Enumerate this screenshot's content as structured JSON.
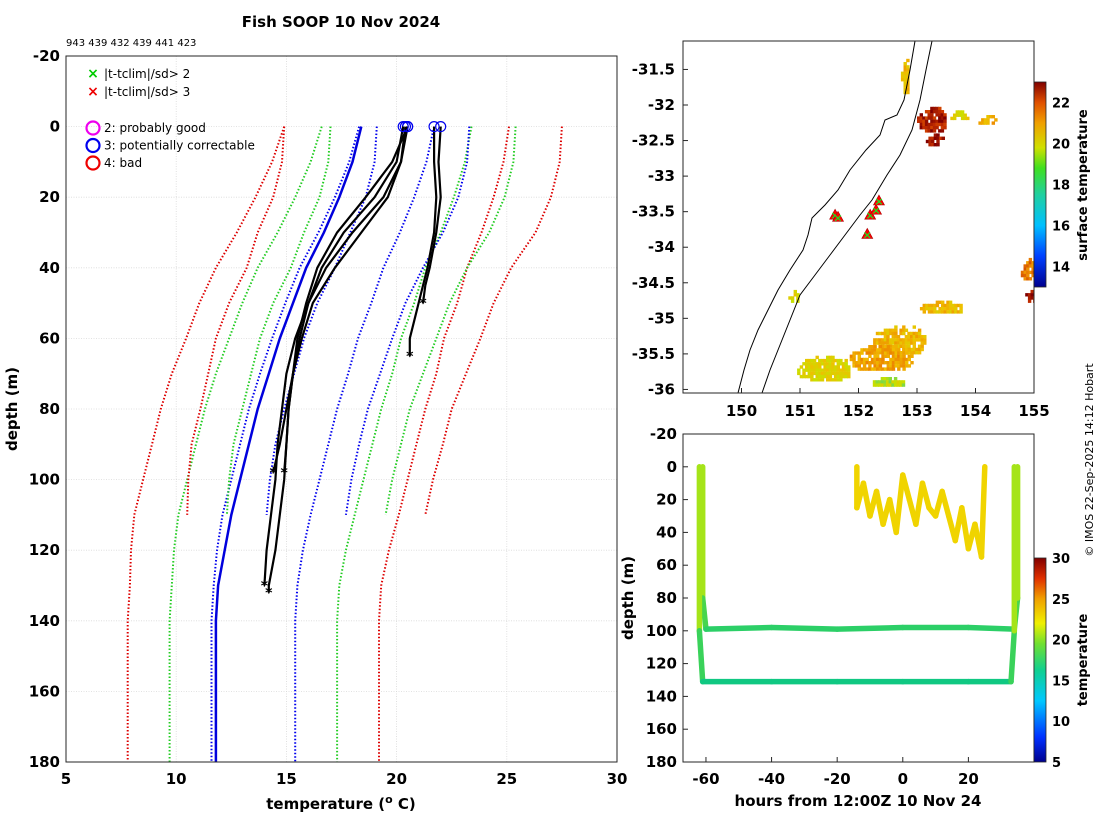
{
  "figure": {
    "title": "Fish SOOP 10 Nov 2024",
    "drop_ids": "943 439 432 439 441 423",
    "credit": "© IMOS 22-Sep-2025 14:12 Hobart"
  },
  "chart_data": [
    {
      "type": "line",
      "name": "profile-plot",
      "xlabel": "temperature (° C)",
      "ylabel": "depth (m)",
      "xlim": [
        5,
        30
      ],
      "ylim": [
        -20,
        180
      ],
      "y_reversed": true,
      "xticks": [
        5,
        10,
        15,
        20,
        25,
        30
      ],
      "yticks": [
        -20,
        0,
        20,
        40,
        60,
        80,
        100,
        120,
        140,
        160,
        180
      ],
      "grid": true,
      "legend": {
        "placement": "top-left",
        "entries": [
          {
            "marker": "x",
            "color": "#00cc00",
            "label": "|t-tclim|/sd> 2"
          },
          {
            "marker": "x",
            "color": "#ee0000",
            "label": "|t-tclim|/sd> 3"
          },
          {
            "marker": "o",
            "color": "#ee00ee",
            "label": "2: probably good"
          },
          {
            "marker": "o",
            "color": "#0000ee",
            "label": "3: potentially correctable"
          },
          {
            "marker": "o",
            "color": "#ee0000",
            "label": "4: bad"
          }
        ]
      },
      "climatology_bounds": {
        "note": "dotted envelopes: blue = ±1 sd, green = ±2 sd, red = ±3 sd; two climatology groups (A: deep drops 0-180 m, B: shallow drops 0-110 m)",
        "depths": [
          0,
          10,
          20,
          30,
          40,
          50,
          60,
          70,
          80,
          90,
          100,
          110,
          120,
          130,
          140,
          150,
          160,
          170,
          180
        ],
        "A_mean": [
          20.0,
          19.6,
          19.0,
          18.3,
          17.5,
          16.9,
          16.3,
          15.8,
          15.3,
          14.9,
          14.5,
          14.1,
          13.8,
          13.6,
          13.5,
          13.5,
          13.5,
          13.5,
          13.5
        ],
        "A_sd": [
          1.7,
          1.75,
          1.8,
          1.85,
          1.9,
          1.95,
          1.95,
          2.0,
          2.0,
          2.0,
          2.0,
          2.0,
          1.95,
          1.9,
          1.9,
          1.9,
          1.9,
          1.9,
          1.9
        ],
        "B_mean": [
          21.2,
          21.1,
          20.7,
          20.0,
          19.2,
          18.4,
          17.8,
          17.3,
          16.8,
          16.4,
          16.1,
          15.9
        ],
        "B_sd": [
          2.1,
          2.1,
          2.1,
          2.1,
          2.0,
          2.0,
          2.0,
          1.95,
          1.9,
          1.9,
          1.85,
          1.8
        ]
      },
      "series": [
        {
          "name": "drop-1",
          "color": "#000000",
          "depth": [
            0,
            10,
            20,
            30,
            40,
            50,
            60,
            70,
            80,
            90,
            100,
            110,
            120,
            130,
            132
          ],
          "temp": [
            20.4,
            20.2,
            19.6,
            18.4,
            17.2,
            16.2,
            15.7,
            15.3,
            15.1,
            15.0,
            14.9,
            14.7,
            14.5,
            14.2,
            14.2
          ],
          "qc_flag": 3
        },
        {
          "name": "drop-2",
          "color": "#000000",
          "depth": [
            0,
            10,
            20,
            30,
            40,
            50,
            60,
            70,
            80,
            90,
            98
          ],
          "temp": [
            20.5,
            20.2,
            19.4,
            18.0,
            16.8,
            16.0,
            15.6,
            15.3,
            15.1,
            15.0,
            14.9
          ],
          "qc_flag": 3
        },
        {
          "name": "drop-3",
          "color": "#000000",
          "depth": [
            0,
            10,
            20,
            30,
            40,
            50,
            60,
            70,
            80,
            90,
            98
          ],
          "temp": [
            20.5,
            19.8,
            18.6,
            17.3,
            16.4,
            15.9,
            15.5,
            15.3,
            15.0,
            14.7,
            14.4
          ],
          "qc_flag": 3
        },
        {
          "name": "drop-4",
          "color": "#000000",
          "depth": [
            0,
            10,
            20,
            30,
            40,
            50,
            60,
            70,
            80,
            90,
            100,
            110,
            120,
            130
          ],
          "temp": [
            20.3,
            20.0,
            19.0,
            17.6,
            16.6,
            16.0,
            15.4,
            15.0,
            14.8,
            14.6,
            14.5,
            14.3,
            14.1,
            14.0
          ],
          "qc_flag": 3
        },
        {
          "name": "drop-5",
          "color": "#000000",
          "depth": [
            0,
            10,
            20,
            30,
            40,
            45,
            50,
            55,
            60,
            65
          ],
          "temp": [
            21.7,
            21.7,
            21.8,
            21.7,
            21.4,
            21.2,
            21.0,
            20.8,
            20.6,
            20.6
          ],
          "qc_flag": 3
        },
        {
          "name": "drop-6",
          "color": "#000000",
          "depth": [
            0,
            10,
            20,
            30,
            40,
            45,
            50
          ],
          "temp": [
            22.0,
            21.9,
            22.0,
            21.8,
            21.5,
            21.3,
            21.2
          ],
          "qc_flag": 3
        }
      ]
    },
    {
      "type": "heatmap",
      "name": "surface-temperature-map",
      "xlim": [
        149,
        155
      ],
      "ylim": [
        -36.05,
        -31.1
      ],
      "xticks": [
        150,
        151,
        152,
        153,
        154,
        155
      ],
      "yticks": [
        -31.5,
        -32,
        -32.5,
        -33,
        -33.5,
        -34,
        -34.5,
        -35,
        -35.5,
        -36
      ],
      "colorbar": {
        "label": "surface temperature",
        "range": [
          13,
          23
        ],
        "ticks": [
          14,
          16,
          18,
          20,
          22
        ]
      },
      "drop_locations": [
        {
          "lon": 151.6,
          "lat": -33.55,
          "label": "drop"
        },
        {
          "lon": 151.65,
          "lat": -33.58,
          "label": "drop"
        },
        {
          "lon": 152.15,
          "lat": -33.82,
          "label": "drop"
        },
        {
          "lon": 152.2,
          "lat": -33.55,
          "label": "drop"
        },
        {
          "lon": 152.3,
          "lat": -33.48,
          "label": "drop"
        },
        {
          "lon": 152.35,
          "lat": -33.35,
          "label": "drop"
        }
      ],
      "sst_patches": [
        {
          "lon": 152.8,
          "lat": -31.6,
          "temp": 20.5,
          "w": 0.15,
          "h": 0.5
        },
        {
          "lon": 153.25,
          "lat": -32.2,
          "temp": 22.6,
          "w": 0.5,
          "h": 0.35
        },
        {
          "lon": 153.3,
          "lat": -32.5,
          "temp": 22.8,
          "w": 0.3,
          "h": 0.2
        },
        {
          "lon": 153.7,
          "lat": -32.15,
          "temp": 20.0,
          "w": 0.35,
          "h": 0.15
        },
        {
          "lon": 154.2,
          "lat": -32.2,
          "temp": 20.8,
          "w": 0.3,
          "h": 0.12
        },
        {
          "lon": 154.9,
          "lat": -34.3,
          "temp": 21.5,
          "w": 0.25,
          "h": 0.3
        },
        {
          "lon": 154.95,
          "lat": -34.7,
          "temp": 22.8,
          "w": 0.2,
          "h": 0.2
        },
        {
          "lon": 150.9,
          "lat": -34.7,
          "temp": 20.0,
          "w": 0.2,
          "h": 0.2
        },
        {
          "lon": 153.4,
          "lat": -34.85,
          "temp": 20.5,
          "w": 0.7,
          "h": 0.2
        },
        {
          "lon": 152.7,
          "lat": -35.3,
          "temp": 20.6,
          "w": 0.9,
          "h": 0.4
        },
        {
          "lon": 152.4,
          "lat": -35.55,
          "temp": 21.0,
          "w": 1.1,
          "h": 0.35
        },
        {
          "lon": 151.4,
          "lat": -35.7,
          "temp": 20.0,
          "w": 0.9,
          "h": 0.35
        },
        {
          "lon": 152.5,
          "lat": -35.9,
          "temp": 19.5,
          "w": 0.6,
          "h": 0.15
        }
      ]
    },
    {
      "type": "scatter",
      "name": "depth-time-plot",
      "xlabel": "hours from 12:00Z 10 Nov 24",
      "ylabel": "depth (m)",
      "xlim": [
        -67,
        40
      ],
      "ylim": [
        -20,
        180
      ],
      "y_reversed": true,
      "xticks": [
        -60,
        -40,
        -20,
        0,
        20
      ],
      "yticks": [
        -20,
        0,
        20,
        40,
        60,
        80,
        100,
        120,
        140,
        160,
        180
      ],
      "colorbar": {
        "label": "temperature",
        "range": [
          5,
          30
        ],
        "ticks": [
          5,
          10,
          15,
          20,
          25,
          30
        ]
      },
      "tracks": [
        {
          "x": [
            -61,
            -61,
            -60,
            -40,
            -20,
            0,
            20,
            34,
            35,
            35
          ],
          "y": [
            0,
            80,
            99,
            98,
            99,
            98,
            98,
            99,
            80,
            0
          ],
          "temp": [
            20,
            17,
            16,
            16,
            16,
            16,
            16,
            16,
            17,
            20
          ]
        },
        {
          "x": [
            -62,
            -62,
            -61,
            -40,
            -20,
            0,
            20,
            33,
            34,
            34
          ],
          "y": [
            0,
            100,
            131,
            131,
            131,
            131,
            131,
            131,
            100,
            0
          ],
          "temp": [
            20,
            17,
            15.5,
            15.5,
            15.5,
            15.5,
            15.5,
            15.5,
            17,
            20
          ]
        },
        {
          "x": [
            -14,
            -14,
            -12,
            -10,
            -8,
            -6,
            -4,
            -2,
            0,
            2,
            4,
            6,
            8,
            10,
            12,
            14,
            16,
            18,
            20,
            22,
            24,
            25
          ],
          "y": [
            0,
            25,
            10,
            30,
            15,
            35,
            20,
            40,
            5,
            20,
            35,
            10,
            25,
            30,
            15,
            30,
            45,
            25,
            50,
            35,
            55,
            0
          ],
          "temp": [
            22,
            22,
            22,
            22,
            22,
            22,
            22,
            22,
            22,
            22,
            22,
            22,
            22,
            22,
            22,
            22,
            22,
            22,
            22,
            22,
            22,
            22
          ]
        }
      ]
    }
  ]
}
